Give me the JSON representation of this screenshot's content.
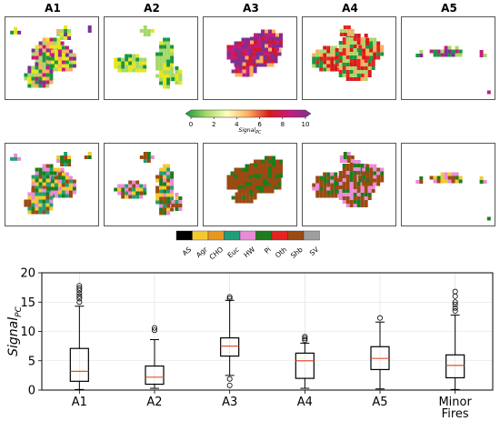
{
  "maps": {
    "columns": [
      "A1",
      "A2",
      "A3",
      "A4",
      "A5"
    ]
  },
  "colorbar": {
    "ticks": [
      "0",
      "2",
      "4",
      "6",
      "8",
      "10"
    ],
    "label": "Signal",
    "label_sub": "PC",
    "colors": [
      "#1a9641",
      "#a6d96a",
      "#ffffbf",
      "#fdae61",
      "#d7191c",
      "#c51b7d",
      "#7b3294"
    ]
  },
  "legend": {
    "items": [
      {
        "code": "AS",
        "color": "#000000"
      },
      {
        "code": "Agr",
        "color": "#f4c92f"
      },
      {
        "code": "CHO",
        "color": "#e8961e"
      },
      {
        "code": "Euc",
        "color": "#1f9e77"
      },
      {
        "code": "HW",
        "color": "#e98bd8"
      },
      {
        "code": "Pi",
        "color": "#1c7d1c"
      },
      {
        "code": "Oth",
        "color": "#e6231f"
      },
      {
        "code": "Shb",
        "color": "#9a4a12"
      },
      {
        "code": "SV",
        "color": "#9e9e9e"
      }
    ]
  },
  "chart_data": {
    "type": "box",
    "ylabel": "Signal",
    "ylabel_sub": "PC",
    "ylim": [
      0,
      20
    ],
    "yticks": [
      "0",
      "5",
      "10",
      "15",
      "20"
    ],
    "grid": true,
    "categories": [
      "A1",
      "A2",
      "A3",
      "A4",
      "A5",
      "Minor\nFires"
    ],
    "category_lines": [
      [
        "A1"
      ],
      [
        "A2"
      ],
      [
        "A3"
      ],
      [
        "A4"
      ],
      [
        "A5"
      ],
      [
        "Minor",
        "Fires"
      ]
    ],
    "boxes": [
      {
        "whislo": 0.1,
        "q1": 1.5,
        "med": 3.2,
        "q3": 7.1,
        "whishi": 14.3,
        "fliers": [
          15.0,
          15.6,
          16.0,
          16.5,
          17.0,
          17.4,
          17.8
        ]
      },
      {
        "whislo": 0.3,
        "q1": 1.0,
        "med": 2.2,
        "q3": 4.1,
        "whishi": 8.6,
        "fliers": [
          10.2,
          10.6
        ]
      },
      {
        "whislo": 2.5,
        "q1": 5.8,
        "med": 7.5,
        "q3": 8.9,
        "whishi": 15.3,
        "fliers": [
          0.8,
          1.9,
          15.6,
          15.9
        ]
      },
      {
        "whislo": 0.3,
        "q1": 2.0,
        "med": 5.0,
        "q3": 6.3,
        "whishi": 8.0,
        "fliers": [
          8.5,
          8.8,
          9.1
        ]
      },
      {
        "whislo": 0.2,
        "q1": 3.5,
        "med": 5.4,
        "q3": 7.4,
        "whishi": 11.6,
        "fliers": [
          12.3
        ]
      },
      {
        "whislo": 0.1,
        "q1": 2.1,
        "med": 4.2,
        "q3": 6.0,
        "whishi": 12.8,
        "fliers": [
          13.5,
          14.0,
          14.6,
          15.0,
          16.0,
          16.8
        ]
      }
    ],
    "colors": {
      "box": "#000000",
      "median": "#e0542e"
    }
  }
}
